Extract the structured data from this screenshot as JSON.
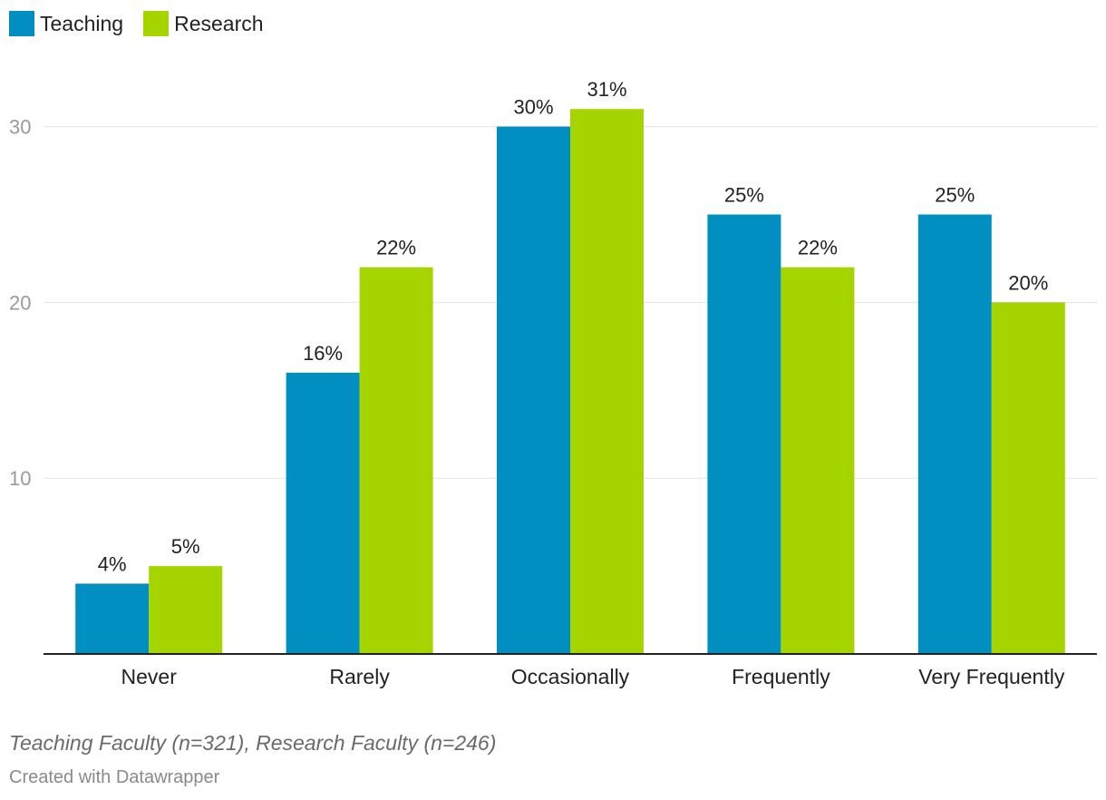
{
  "colors": {
    "teaching": "#008fc0",
    "research": "#a6d400",
    "grid": "#e2e2e2",
    "axis": "#222222",
    "tick": "#9a9a9a",
    "label": "#222222"
  },
  "legend": {
    "items": [
      {
        "label": "Teaching"
      },
      {
        "label": "Research"
      }
    ]
  },
  "chart_data": {
    "type": "bar",
    "categories": [
      "Never",
      "Rarely",
      "Occasionally",
      "Frequently",
      "Very Frequently"
    ],
    "series": [
      {
        "name": "Teaching",
        "values": [
          4,
          16,
          30,
          25,
          25
        ]
      },
      {
        "name": "Research",
        "values": [
          5,
          22,
          31,
          22,
          20
        ]
      }
    ],
    "value_suffix": "%",
    "yticks": [
      10,
      20,
      30
    ],
    "ylim": [
      0,
      33.9
    ],
    "grid": true,
    "legend_position": "top-left"
  },
  "footer": {
    "note": "Teaching Faculty (n=321), Research Faculty (n=246)",
    "credit": "Created with Datawrapper"
  }
}
